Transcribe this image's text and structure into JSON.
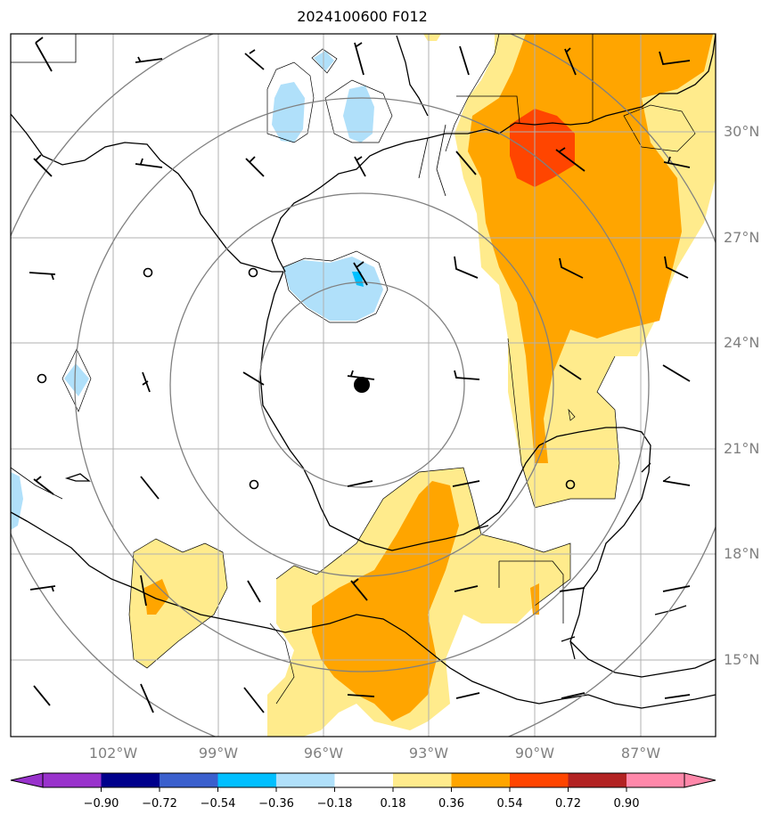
{
  "title": "2024100600 F012",
  "lat_labels": [
    "30°N",
    "27°N",
    "24°N",
    "21°N",
    "18°N",
    "15°N"
  ],
  "lon_labels": [
    "102°W",
    "99°W",
    "96°W",
    "93°W",
    "90°W",
    "87°W"
  ],
  "colorbar": {
    "ticks": [
      "−0.90",
      "−0.72",
      "−0.54",
      "−0.36",
      "−0.18",
      "0.18",
      "0.36",
      "0.54",
      "0.72",
      "0.90"
    ],
    "colors": [
      "#9932cc",
      "#00008b",
      "#3a5fcd",
      "#00bfff",
      "#b0e0fa",
      "#ffffff",
      "#ffeb8c",
      "#ffa500",
      "#ff4500",
      "#b22222",
      "#ff88aa"
    ]
  },
  "storm_center": {
    "lon": -95.0,
    "lat": 22.8
  },
  "chart_data": {
    "type": "map",
    "x_range_lon": [
      -105,
      -85
    ],
    "y_range_lat": [
      13,
      33
    ],
    "fill_levels": [
      -0.9,
      -0.72,
      -0.54,
      -0.36,
      -0.18,
      0.18,
      0.36,
      0.54,
      0.72,
      0.9
    ],
    "range_rings": 4,
    "grid": true
  }
}
